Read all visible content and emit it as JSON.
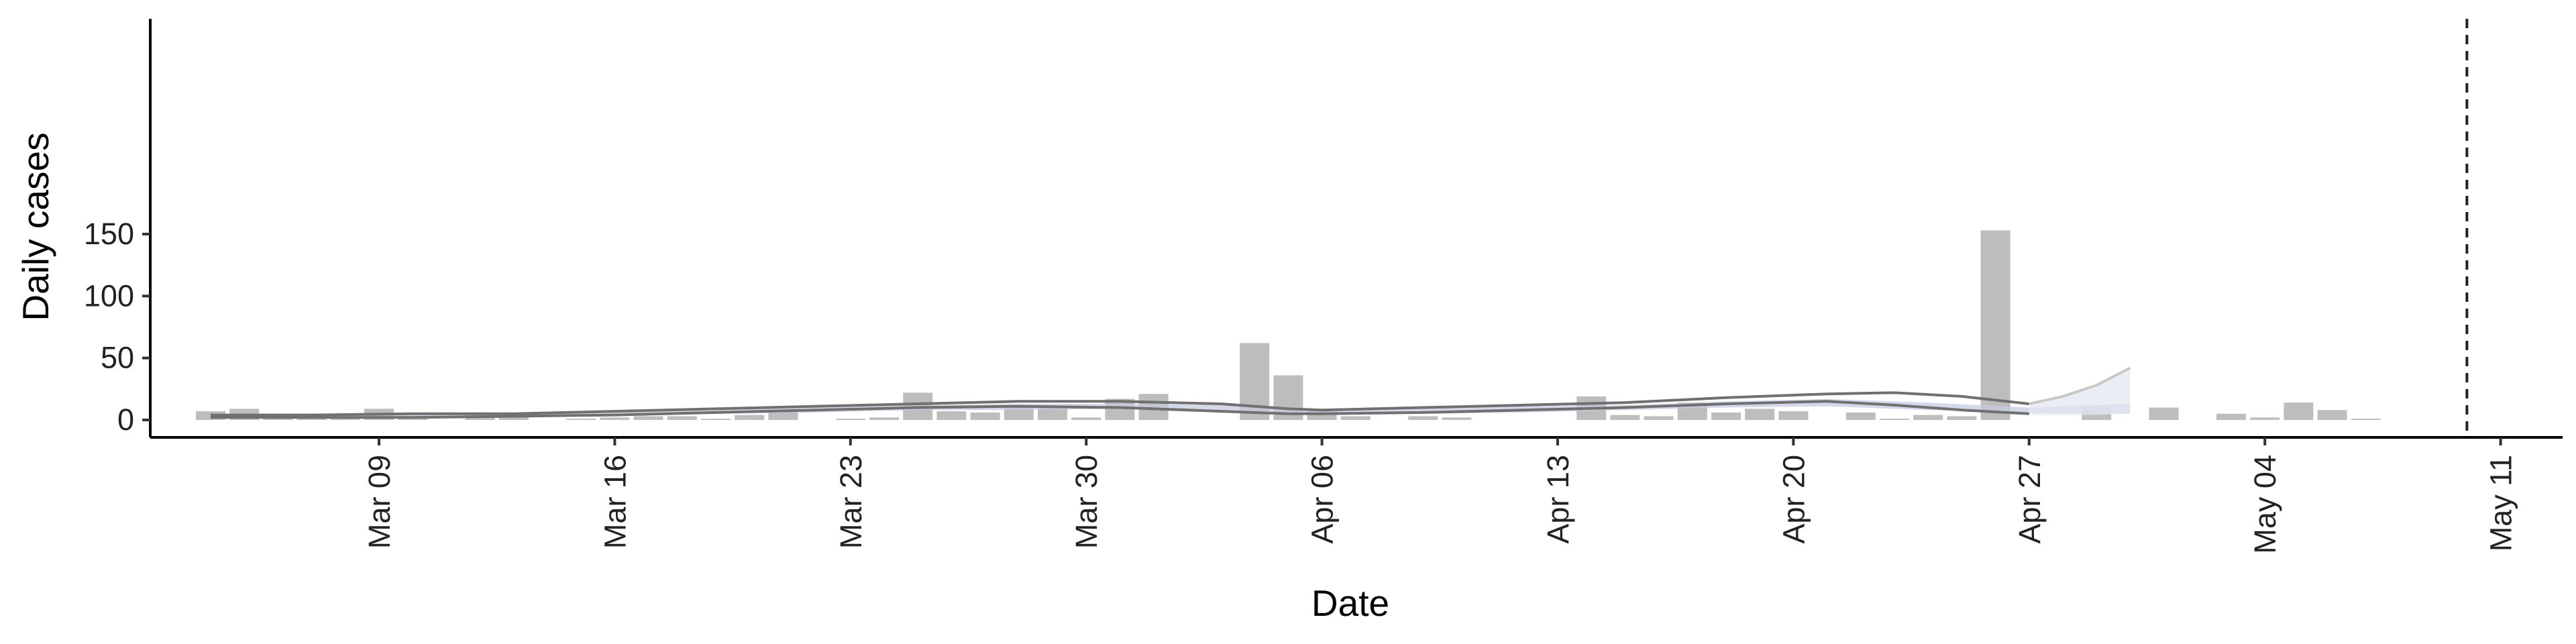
{
  "chart_data": {
    "type": "bar",
    "xlabel": "Date",
    "ylabel": "Daily cases",
    "ylim": [
      0,
      160
    ],
    "xlim": [
      "2020-03-03",
      "2020-05-12"
    ],
    "y_ticks": [
      0,
      50,
      100,
      150
    ],
    "x_ticks": [
      {
        "date": "2020-03-09",
        "label": "Mar 09"
      },
      {
        "date": "2020-03-16",
        "label": "Mar 16"
      },
      {
        "date": "2020-03-23",
        "label": "Mar 23"
      },
      {
        "date": "2020-03-30",
        "label": "Mar 30"
      },
      {
        "date": "2020-04-06",
        "label": "Apr 06"
      },
      {
        "date": "2020-04-13",
        "label": "Apr 13"
      },
      {
        "date": "2020-04-20",
        "label": "Apr 20"
      },
      {
        "date": "2020-04-27",
        "label": "Apr 27"
      },
      {
        "date": "2020-05-04",
        "label": "May 04"
      },
      {
        "date": "2020-05-11",
        "label": "May 11"
      }
    ],
    "grid": false,
    "bars": {
      "color": "#bdbdbd",
      "dates": [
        "2020-03-04",
        "2020-03-05",
        "2020-03-06",
        "2020-03-07",
        "2020-03-08",
        "2020-03-09",
        "2020-03-10",
        "2020-03-11",
        "2020-03-12",
        "2020-03-13",
        "2020-03-14",
        "2020-03-15",
        "2020-03-16",
        "2020-03-17",
        "2020-03-18",
        "2020-03-19",
        "2020-03-20",
        "2020-03-21",
        "2020-03-22",
        "2020-03-23",
        "2020-03-24",
        "2020-03-25",
        "2020-03-26",
        "2020-03-27",
        "2020-03-28",
        "2020-03-29",
        "2020-03-30",
        "2020-03-31",
        "2020-04-01",
        "2020-04-02",
        "2020-04-03",
        "2020-04-04",
        "2020-04-05",
        "2020-04-06",
        "2020-04-07",
        "2020-04-08",
        "2020-04-09",
        "2020-04-10",
        "2020-04-11",
        "2020-04-12",
        "2020-04-13",
        "2020-04-14",
        "2020-04-15",
        "2020-04-16",
        "2020-04-17",
        "2020-04-18",
        "2020-04-19",
        "2020-04-20",
        "2020-04-21",
        "2020-04-22",
        "2020-04-23",
        "2020-04-24",
        "2020-04-25",
        "2020-04-26",
        "2020-04-27",
        "2020-04-28",
        "2020-04-29",
        "2020-04-30",
        "2020-05-01",
        "2020-05-02",
        "2020-05-03",
        "2020-05-04",
        "2020-05-05",
        "2020-05-06",
        "2020-05-07",
        "2020-05-08"
      ],
      "values": [
        7,
        9,
        4,
        2,
        1,
        9,
        1,
        0,
        6,
        5,
        0,
        1,
        2,
        3,
        3,
        1,
        4,
        7,
        0,
        1,
        2,
        22,
        7,
        6,
        10,
        10,
        2,
        17,
        21,
        0,
        0,
        62,
        36,
        7,
        3,
        0,
        3,
        2,
        0,
        0,
        0,
        19,
        4,
        3,
        14,
        6,
        9,
        7,
        0,
        6,
        1,
        4,
        3,
        153,
        0,
        0,
        12,
        0,
        10,
        0,
        5,
        2,
        14,
        8,
        1,
        0
      ]
    },
    "vline": {
      "date": "2020-05-10",
      "style": "dashed",
      "color": "#222222"
    },
    "estimate_band": {
      "color": "#c5cbe0",
      "dates": [
        "2020-03-04",
        "2020-03-07",
        "2020-03-10",
        "2020-03-13",
        "2020-03-16",
        "2020-03-19",
        "2020-03-22",
        "2020-03-25",
        "2020-03-28",
        "2020-03-31",
        "2020-04-03",
        "2020-04-06",
        "2020-04-09",
        "2020-04-12",
        "2020-04-15",
        "2020-04-18",
        "2020-04-21",
        "2020-04-24",
        "2020-04-27",
        "2020-04-30"
      ],
      "lower": [
        2,
        2,
        2,
        3,
        4,
        5,
        6,
        8,
        8,
        9,
        7,
        5,
        5,
        6,
        8,
        10,
        11,
        8,
        6,
        5
      ],
      "upper": [
        4,
        4,
        4,
        5,
        7,
        8,
        10,
        12,
        13,
        13,
        12,
        7,
        9,
        11,
        12,
        15,
        17,
        14,
        10,
        13
      ]
    },
    "forecast_band": {
      "color": "#e4e7f1",
      "dates": [
        "2020-04-27",
        "2020-04-28",
        "2020-04-29",
        "2020-04-30"
      ],
      "lower": [
        4,
        4,
        4,
        5
      ],
      "upper": [
        13,
        19,
        28,
        42
      ]
    },
    "upper_line": {
      "color": "#707070",
      "dates": [
        "2020-03-04",
        "2020-03-07",
        "2020-03-10",
        "2020-03-13",
        "2020-03-16",
        "2020-03-19",
        "2020-03-22",
        "2020-03-25",
        "2020-03-28",
        "2020-03-31",
        "2020-04-03",
        "2020-04-05",
        "2020-04-06",
        "2020-04-09",
        "2020-04-12",
        "2020-04-15",
        "2020-04-18",
        "2020-04-21",
        "2020-04-23",
        "2020-04-25",
        "2020-04-27"
      ],
      "values": [
        4,
        4,
        5,
        5,
        7,
        9,
        11,
        13,
        15,
        15,
        13,
        9,
        8,
        10,
        12,
        14,
        18,
        21,
        22,
        19,
        13
      ]
    },
    "lower_line": {
      "color": "#707070",
      "dates": [
        "2020-03-04",
        "2020-03-07",
        "2020-03-10",
        "2020-03-13",
        "2020-03-16",
        "2020-03-19",
        "2020-03-22",
        "2020-03-25",
        "2020-03-28",
        "2020-03-31",
        "2020-04-03",
        "2020-04-05",
        "2020-04-06",
        "2020-04-09",
        "2020-04-12",
        "2020-04-15",
        "2020-04-18",
        "2020-04-21",
        "2020-04-23",
        "2020-04-25",
        "2020-04-27"
      ],
      "values": [
        2,
        2,
        2,
        3,
        4,
        6,
        8,
        10,
        11,
        10,
        7,
        5,
        5,
        6,
        8,
        10,
        13,
        15,
        12,
        8,
        5
      ]
    },
    "forecast_line": {
      "color": "#c8c8c8",
      "dates": [
        "2020-04-27",
        "2020-04-28",
        "2020-04-29",
        "2020-04-30"
      ],
      "values": [
        13,
        19,
        28,
        42
      ]
    }
  }
}
